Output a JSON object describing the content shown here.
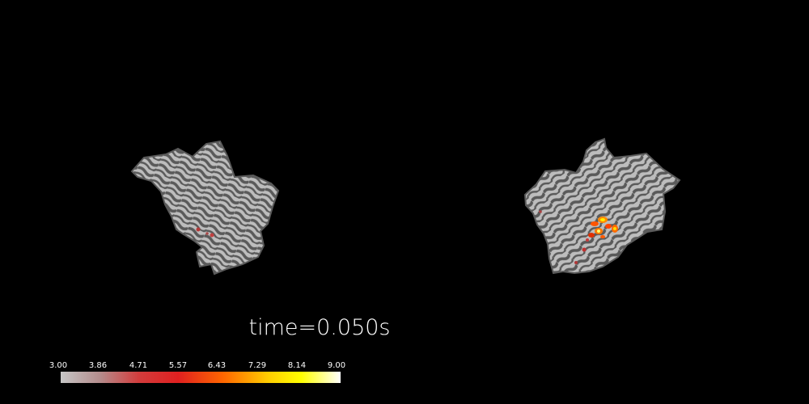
{
  "time_label": "time=0.050s",
  "colorbar": {
    "ticks": [
      "3.00",
      "3.86",
      "4.71",
      "5.57",
      "6.43",
      "7.29",
      "8.14",
      "9.00"
    ],
    "colors": [
      "#c6c6c6",
      "#b48c8c",
      "#d23c3c",
      "#e02020",
      "#ff6600",
      "#ffcc00",
      "#ffff00",
      "#ffffff"
    ]
  },
  "colors": {
    "background": "#000000",
    "sulci": "#5a5a5a",
    "gyri": "#bdbdbd"
  }
}
